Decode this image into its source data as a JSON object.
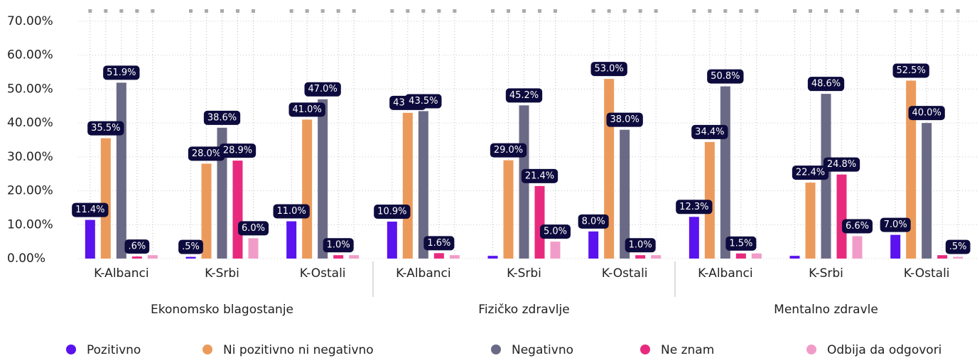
{
  "chart_data": {
    "type": "bar",
    "categories": [
      "K-Albanci",
      "K-Srbi",
      "K-Ostali",
      "K-Albanci",
      "K-Srbi",
      "K-Ostali",
      "K-Albanci",
      "K-Srbi",
      "K-Ostali"
    ],
    "group_labels": [
      "Ekonomsko blagostanje",
      "Fizičko zdravlje",
      "Mentalno zdravle"
    ],
    "ylim": [
      0,
      70
    ],
    "yticks": [
      {
        "value": 0,
        "label": "0.00%"
      },
      {
        "value": 10,
        "label": "10.00%"
      },
      {
        "value": 20,
        "label": "20.00%"
      },
      {
        "value": 30,
        "label": "30.00%"
      },
      {
        "value": 40,
        "label": "40.00%"
      },
      {
        "value": 50,
        "label": "50.00%"
      },
      {
        "value": 60,
        "label": "60.00%"
      },
      {
        "value": 70,
        "label": "70.00%"
      }
    ],
    "grid": true,
    "legend": "bottom",
    "series": [
      {
        "name": "Pozitivno",
        "color": "#5a12ee",
        "values": [
          11.4,
          0.5,
          11.0,
          10.9,
          0.8,
          8.0,
          12.3,
          0.8,
          7.0
        ],
        "value_labels": [
          "11.4%",
          ".5%",
          "11.0%",
          "10.9%",
          null,
          "8.0%",
          "12.3%",
          null,
          "7.0%"
        ]
      },
      {
        "name": "Ni pozitivno ni negativno",
        "color": "#ec9a5b",
        "values": [
          35.5,
          28.0,
          41.0,
          43.0,
          29.0,
          53.0,
          34.4,
          22.4,
          52.5
        ],
        "value_labels": [
          "35.5%",
          "28.0%",
          "41.0%",
          "43.0%",
          "29.0%",
          "53.0%",
          "34.4%",
          "22.4%",
          "52.5%"
        ]
      },
      {
        "name": "Negativno",
        "color": "#6b6a86",
        "values": [
          51.9,
          38.6,
          47.0,
          43.5,
          45.2,
          38.0,
          50.8,
          48.6,
          40.0
        ],
        "value_labels": [
          "51.9%",
          "38.6%",
          "47.0%",
          "43.5%",
          "45.2%",
          "38.0%",
          "50.8%",
          "48.6%",
          "40.0%"
        ]
      },
      {
        "name": "Ne znam",
        "color": "#e82a7e",
        "values": [
          0.6,
          28.9,
          1.0,
          1.6,
          21.4,
          1.0,
          1.5,
          24.8,
          1.0
        ],
        "value_labels": [
          ".6%",
          "28.9%",
          "1.0%",
          "1.6%",
          "21.4%",
          "1.0%",
          "1.5%",
          "24.8%",
          null
        ]
      },
      {
        "name": "Odbija da odgovori",
        "color": "#f19cc8",
        "values": [
          1.0,
          6.0,
          1.0,
          1.0,
          5.0,
          1.0,
          1.5,
          6.6,
          0.5
        ],
        "value_labels": [
          null,
          "6.0%",
          null,
          null,
          "5.0%",
          null,
          null,
          "6.6%",
          ".5%"
        ]
      }
    ]
  }
}
